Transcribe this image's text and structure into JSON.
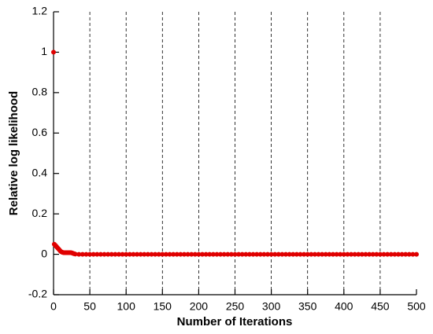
{
  "chart_data": {
    "type": "scatter",
    "x_label": "Number of Iterations",
    "y_label": "Relative log likelihood",
    "xlim": [
      0,
      500
    ],
    "ylim": [
      -0.2,
      1.2
    ],
    "xticks": [
      0,
      50,
      100,
      150,
      200,
      250,
      300,
      350,
      400,
      450,
      500
    ],
    "yticks": [
      -0.2,
      0,
      0.2,
      0.4,
      0.6,
      0.8,
      1,
      1.2
    ],
    "grid": "x-dashed",
    "color": "#e00000",
    "x": [
      0,
      1,
      2,
      3,
      4,
      5,
      6,
      7,
      8,
      9,
      10,
      11,
      12,
      13,
      14,
      15,
      16,
      17,
      18,
      19,
      20,
      21,
      22,
      23,
      24,
      25,
      26,
      27,
      28,
      29,
      30,
      35,
      40,
      45,
      50,
      55,
      60,
      65,
      70,
      75,
      80,
      85,
      90,
      95,
      100,
      105,
      110,
      115,
      120,
      125,
      130,
      135,
      140,
      145,
      150,
      155,
      160,
      165,
      170,
      175,
      180,
      185,
      190,
      195,
      200,
      205,
      210,
      215,
      220,
      225,
      230,
      235,
      240,
      245,
      250,
      255,
      260,
      265,
      270,
      275,
      280,
      285,
      290,
      295,
      300,
      305,
      310,
      315,
      320,
      325,
      330,
      335,
      340,
      345,
      350,
      355,
      360,
      365,
      370,
      375,
      380,
      385,
      390,
      395,
      400,
      405,
      410,
      415,
      420,
      425,
      430,
      435,
      440,
      445,
      450,
      455,
      460,
      465,
      470,
      475,
      480,
      485,
      490,
      495,
      500
    ],
    "values": [
      1,
      0.05,
      0.046,
      0.042,
      0.038,
      0.034,
      0.03,
      0.026,
      0.022,
      0.018,
      0.014,
      0.012,
      0.01,
      0.009,
      0.008,
      0.008,
      0.008,
      0.008,
      0.008,
      0.008,
      0.008,
      0.008,
      0.008,
      0.008,
      0.008,
      0.007,
      0.006,
      0.004,
      0.003,
      0.002,
      0.001,
      0,
      0,
      0,
      0,
      0,
      0,
      0,
      0,
      0,
      0,
      0,
      0,
      0,
      0,
      0,
      0,
      0,
      0,
      0,
      0,
      0,
      0,
      0,
      0,
      0,
      0,
      0,
      0,
      0,
      0,
      0,
      0,
      0,
      0,
      0,
      0,
      0,
      0,
      0,
      0,
      0,
      0,
      0,
      0,
      0,
      0,
      0,
      0,
      0,
      0,
      0,
      0,
      0,
      0,
      0,
      0,
      0,
      0,
      0,
      0,
      0,
      0,
      0,
      0,
      0,
      0,
      0,
      0,
      0,
      0,
      0,
      0,
      0,
      0,
      0,
      0,
      0,
      0,
      0,
      0,
      0,
      0,
      0,
      0,
      0,
      0,
      0,
      0,
      0,
      0,
      0,
      0,
      0,
      0
    ]
  }
}
